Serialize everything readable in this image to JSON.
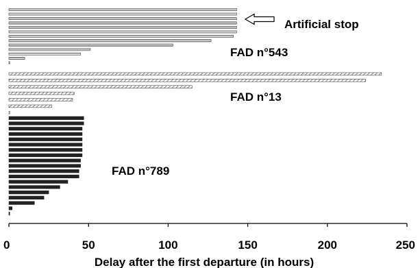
{
  "chart_data": {
    "type": "bar",
    "orientation": "horizontal",
    "title": "",
    "xlabel": "Delay after the first departure (in hours)",
    "ylabel": "",
    "xlim": [
      0,
      250
    ],
    "xticks": [
      0,
      50,
      100,
      150,
      200,
      250
    ],
    "grid": false,
    "legend": "none",
    "series": [
      {
        "name": "FAD n°543",
        "fill": "horizontal-lines",
        "values": [
          143,
          143,
          143,
          143,
          143,
          143,
          141,
          127,
          103,
          51,
          45,
          10,
          0
        ]
      },
      {
        "name": "FAD n°13",
        "fill": "diagonal-lines",
        "values": [
          234,
          224,
          115,
          41,
          40,
          27,
          0
        ]
      },
      {
        "name": "FAD n°789",
        "fill": "solid",
        "values": [
          47,
          47,
          46,
          46,
          46,
          46,
          46,
          46,
          45,
          45,
          44,
          44,
          37,
          32,
          25,
          22,
          16,
          2,
          0
        ]
      }
    ],
    "annotations": [
      {
        "text": "Artificial stop",
        "arrow": true
      },
      {
        "text": "FAD n°543"
      },
      {
        "text": "FAD n°13"
      },
      {
        "text": "FAD n°789"
      }
    ],
    "colors": {
      "solid": "#222222",
      "outline": "#444444",
      "hatch": "#555555"
    }
  }
}
